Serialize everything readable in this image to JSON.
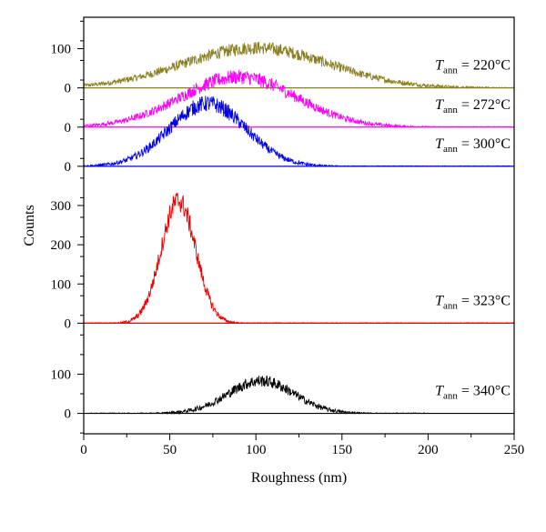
{
  "chart_data": {
    "type": "line",
    "title": "",
    "xlabel": "Roughness (nm)",
    "ylabel": "Counts",
    "xlim": [
      0,
      250
    ],
    "x_ticks": [
      0,
      50,
      100,
      150,
      200,
      250
    ],
    "grid": false,
    "legend": "none (series labelled inline at right)",
    "vertical_offset_stacking": true,
    "y_tick_labels": [
      {
        "offset_counts": 0,
        "label": "0"
      },
      {
        "offset_counts": 100,
        "label": "100"
      },
      {
        "offset_counts": 230,
        "label": "0"
      },
      {
        "offset_counts": 330,
        "label": "100"
      },
      {
        "offset_counts": 430,
        "label": "200"
      },
      {
        "offset_counts": 530,
        "label": "300"
      },
      {
        "offset_counts": 630,
        "label": "0"
      },
      {
        "offset_counts": 730,
        "label": "0"
      },
      {
        "offset_counts": 830,
        "label": "0"
      },
      {
        "offset_counts": 930,
        "label": "100"
      }
    ],
    "ylim_offset": [
      -52,
      1010
    ],
    "series": [
      {
        "label_var": "T",
        "label_sub": "ann",
        "label_rest": " = 220°C",
        "color": "#8b8020",
        "baseline_counts": 830,
        "peak_x": 100,
        "peak_counts": 102,
        "sigma_nm": 42,
        "x_start": 0,
        "x_end": 250
      },
      {
        "label_var": "T",
        "label_sub": "ann",
        "label_rest": " = 272°C",
        "color": "#ff00ff",
        "baseline_counts": 730,
        "peak_x": 90,
        "peak_counts": 128,
        "sigma_nm": 33,
        "x_start": 0,
        "x_end": 250
      },
      {
        "label_var": "T",
        "label_sub": "ann",
        "label_rest": " = 300°C",
        "color": "#0000ee",
        "baseline_counts": 630,
        "peak_x": 72,
        "peak_counts": 160,
        "sigma_nm": 22,
        "x_start": 0,
        "x_end": 250
      },
      {
        "label_var": "T",
        "label_sub": "ann",
        "label_rest": " = 323°C",
        "color": "#ee0000",
        "baseline_counts": 230,
        "peak_x": 55,
        "peak_counts": 312,
        "sigma_nm": 10,
        "x_start": 0,
        "x_end": 250
      },
      {
        "label_var": "T",
        "label_sub": "ann",
        "label_rest": " = 340°C",
        "color": "#000000",
        "baseline_counts": 0,
        "peak_x": 103,
        "peak_counts": 83,
        "sigma_nm": 19,
        "x_start": 0,
        "x_end": 200
      }
    ]
  }
}
